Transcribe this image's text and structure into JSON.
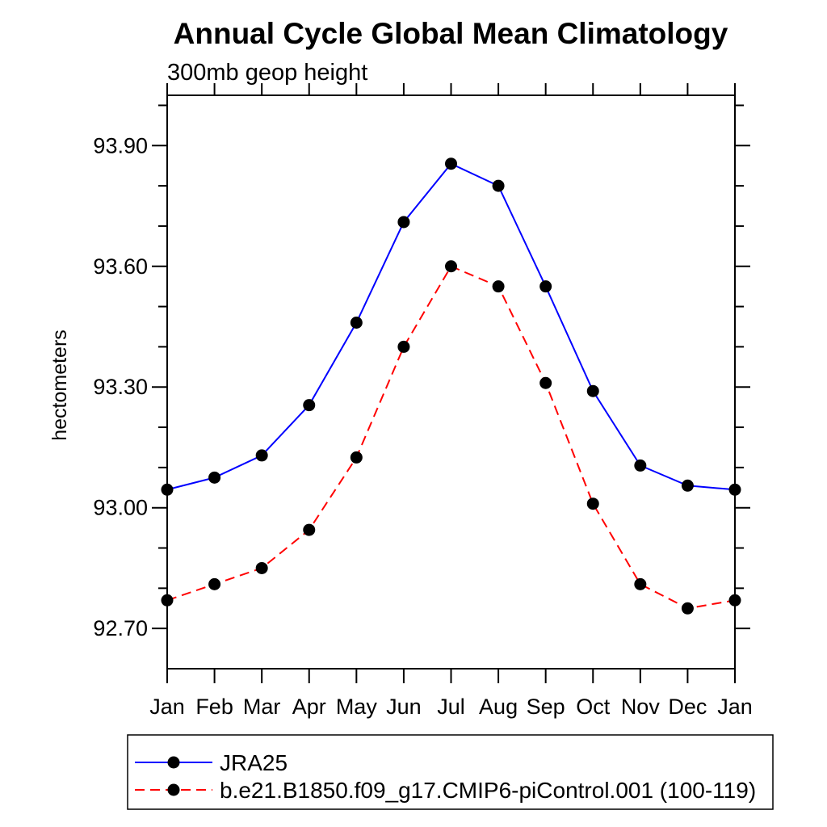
{
  "chart_data": {
    "type": "line",
    "title": "Annual Cycle Global Mean Climatology",
    "subtitle": "300mb geop height",
    "ylabel": "hectometers",
    "x_categories": [
      "Jan",
      "Feb",
      "Mar",
      "Apr",
      "May",
      "Jun",
      "Jul",
      "Aug",
      "Sep",
      "Oct",
      "Nov",
      "Dec",
      "Jan"
    ],
    "series": [
      {
        "name": "JRA25",
        "color": "#0000ff",
        "line_style": "solid",
        "marker": "filled-circle",
        "marker_color": "#000000",
        "values": [
          93.045,
          93.075,
          93.13,
          93.255,
          93.46,
          93.71,
          93.855,
          93.8,
          93.55,
          93.29,
          93.105,
          93.055,
          93.045
        ]
      },
      {
        "name": "b.e21.B1850.f09_g17.CMIP6-piControl.001 (100-119)",
        "color": "#ff0000",
        "line_style": "dashed",
        "marker": "filled-circle",
        "marker_color": "#000000",
        "values": [
          92.77,
          92.81,
          92.85,
          92.945,
          93.125,
          93.4,
          93.6,
          93.55,
          93.31,
          93.01,
          92.81,
          92.75,
          92.77
        ]
      }
    ],
    "ylim": [
      92.6,
      94.025
    ],
    "yticks_major": [
      92.7,
      93.0,
      93.3,
      93.6,
      93.9
    ],
    "ytick_labels": [
      "92.70",
      "93.00",
      "93.30",
      "93.60",
      "93.90"
    ],
    "ytick_minor_step": 0.1,
    "grid": false,
    "legend": {
      "position": "bottom-left",
      "border": true
    }
  },
  "colors": {
    "axis": "#000000",
    "background": "#ffffff",
    "marker": "#000000"
  }
}
